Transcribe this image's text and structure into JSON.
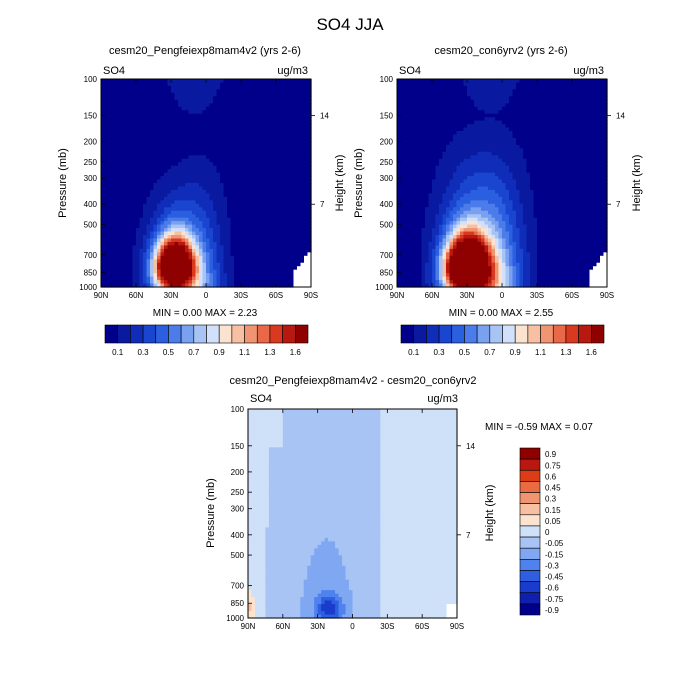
{
  "title": "SO4 JJA",
  "colors": {
    "seq": [
      "#00008b",
      "#0a1aa0",
      "#0f2db8",
      "#1a45cf",
      "#2a5fe0",
      "#4c7bea",
      "#7aa0f0",
      "#a8c4f5",
      "#d2e0fa",
      "#fbe3cf",
      "#f7c0a2",
      "#f09572",
      "#e86848",
      "#d93a1f",
      "#b81810",
      "#8f0000"
    ],
    "diff": [
      "#00008b",
      "#0e20ad",
      "#1a3ccc",
      "#2d5fe0",
      "#4f82ee",
      "#80a8f2",
      "#a8c4f5",
      "#cfe0f9",
      "#fbe3cf",
      "#f7c0a2",
      "#f09572",
      "#ea6a42",
      "#dc3c18",
      "#b81810",
      "#8f0000"
    ]
  },
  "panels": [
    {
      "title": "cesm20_Pengfeiexp8mam4v2 (yrs 2-6)",
      "left_label": "SO4",
      "right_label": "ug/m3",
      "minmax": "MIN =  0.00  MAX =  2.23",
      "ylabel": "Pressure (mb)",
      "ylabel_right": "Height (km)"
    },
    {
      "title": "cesm20_con6yrv2 (yrs 2-6)",
      "left_label": "SO4",
      "right_label": "ug/m3",
      "minmax": "MIN =  0.00  MAX =  2.55",
      "ylabel": "Pressure (mb)",
      "ylabel_right": "Height (km)"
    },
    {
      "title": "cesm20_Pengfeiexp8mam4v2 - cesm20_con6yrv2",
      "left_label": "SO4",
      "right_label": "ug/m3",
      "minmax": "MIN = -0.59  MAX =   0.07",
      "ylabel": "Pressure (mb)",
      "ylabel_right": "Height (km)"
    }
  ],
  "seq_labels": [
    "0.1",
    "0.3",
    "0.5",
    "0.7",
    "0.9",
    "1.1",
    "1.3",
    "1.6"
  ],
  "diff_labels": [
    "0.9",
    "0.75",
    "0.6",
    "0.45",
    "0.3",
    "0.15",
    "0.05",
    "0",
    "-0.05",
    "-0.15",
    "-0.3",
    "-0.45",
    "-0.6",
    "-0.75",
    "-0.9"
  ],
  "chart_data": [
    {
      "type": "heatmap",
      "title": "cesm20_Pengfeiexp8mam4v2 (yrs 2-6)",
      "xlabel": "",
      "ylabel": "Pressure (mb)",
      "y2label": "Height (km)",
      "x_ticks": [
        "90N",
        "60N",
        "30N",
        "0",
        "30S",
        "60S",
        "90S"
      ],
      "y_ticks": [
        100,
        150,
        200,
        250,
        300,
        400,
        500,
        700,
        850,
        1000
      ],
      "y_tick_labels": [
        "100",
        "150",
        "200",
        "250",
        "300",
        "400",
        "500",
        "700",
        "850",
        "1000"
      ],
      "y2_ticks": [
        {
          "label": "14",
          "p": 150
        },
        {
          "label": "7",
          "p": 400
        }
      ],
      "min": 0.0,
      "max": 2.23,
      "levels": [
        0.1,
        0.2,
        0.3,
        0.4,
        0.5,
        0.6,
        0.7,
        0.8,
        0.9,
        1.0,
        1.1,
        1.2,
        1.3,
        1.4,
        1.6
      ],
      "blob": {
        "lat": 27,
        "p": 790,
        "sx": 11,
        "sy": 150,
        "amp": 2.23
      },
      "plume": {
        "lat": 22,
        "amp": 0.6,
        "sx": 22,
        "ptop": 230
      },
      "missing_right": true
    },
    {
      "type": "heatmap",
      "title": "cesm20_con6yrv2 (yrs 2-6)",
      "xlabel": "",
      "ylabel": "Pressure (mb)",
      "y2label": "Height (km)",
      "x_ticks": [
        "90N",
        "60N",
        "30N",
        "0",
        "30S",
        "60S",
        "90S"
      ],
      "y_ticks": [
        100,
        150,
        200,
        250,
        300,
        400,
        500,
        700,
        850,
        1000
      ],
      "y_tick_labels": [
        "100",
        "150",
        "200",
        "250",
        "300",
        "400",
        "500",
        "700",
        "850",
        "1000"
      ],
      "y2_ticks": [
        {
          "label": "14",
          "p": 150
        },
        {
          "label": "7",
          "p": 400
        }
      ],
      "min": 0.0,
      "max": 2.55,
      "levels": [
        0.1,
        0.2,
        0.3,
        0.4,
        0.5,
        0.6,
        0.7,
        0.8,
        0.9,
        1.0,
        1.1,
        1.2,
        1.3,
        1.4,
        1.6
      ],
      "blob": {
        "lat": 30,
        "p": 800,
        "sx": 12,
        "sy": 160,
        "amp": 2.55
      },
      "plume": {
        "lat": 20,
        "amp": 0.85,
        "sx": 25,
        "ptop": 150
      },
      "missing_right": true
    },
    {
      "type": "heatmap",
      "title": "cesm20_Pengfeiexp8mam4v2 - cesm20_con6yrv2",
      "xlabel": "",
      "ylabel": "Pressure (mb)",
      "y2label": "Height (km)",
      "x_ticks": [
        "90N",
        "60N",
        "30N",
        "0",
        "30S",
        "60S",
        "90S"
      ],
      "y_ticks": [
        100,
        150,
        200,
        250,
        300,
        400,
        500,
        700,
        850,
        1000
      ],
      "y_tick_labels": [
        "100",
        "150",
        "200",
        "250",
        "300",
        "400",
        "500",
        "700",
        "850",
        "1000"
      ],
      "y2_ticks": [
        {
          "label": "14",
          "p": 150
        },
        {
          "label": "7",
          "p": 400
        }
      ],
      "min": -0.59,
      "max": 0.07,
      "levels": [
        -0.9,
        -0.75,
        -0.6,
        -0.45,
        -0.3,
        -0.15,
        -0.05,
        0,
        0.05,
        0.15,
        0.3,
        0.45,
        0.6,
        0.75,
        0.9
      ]
    }
  ]
}
